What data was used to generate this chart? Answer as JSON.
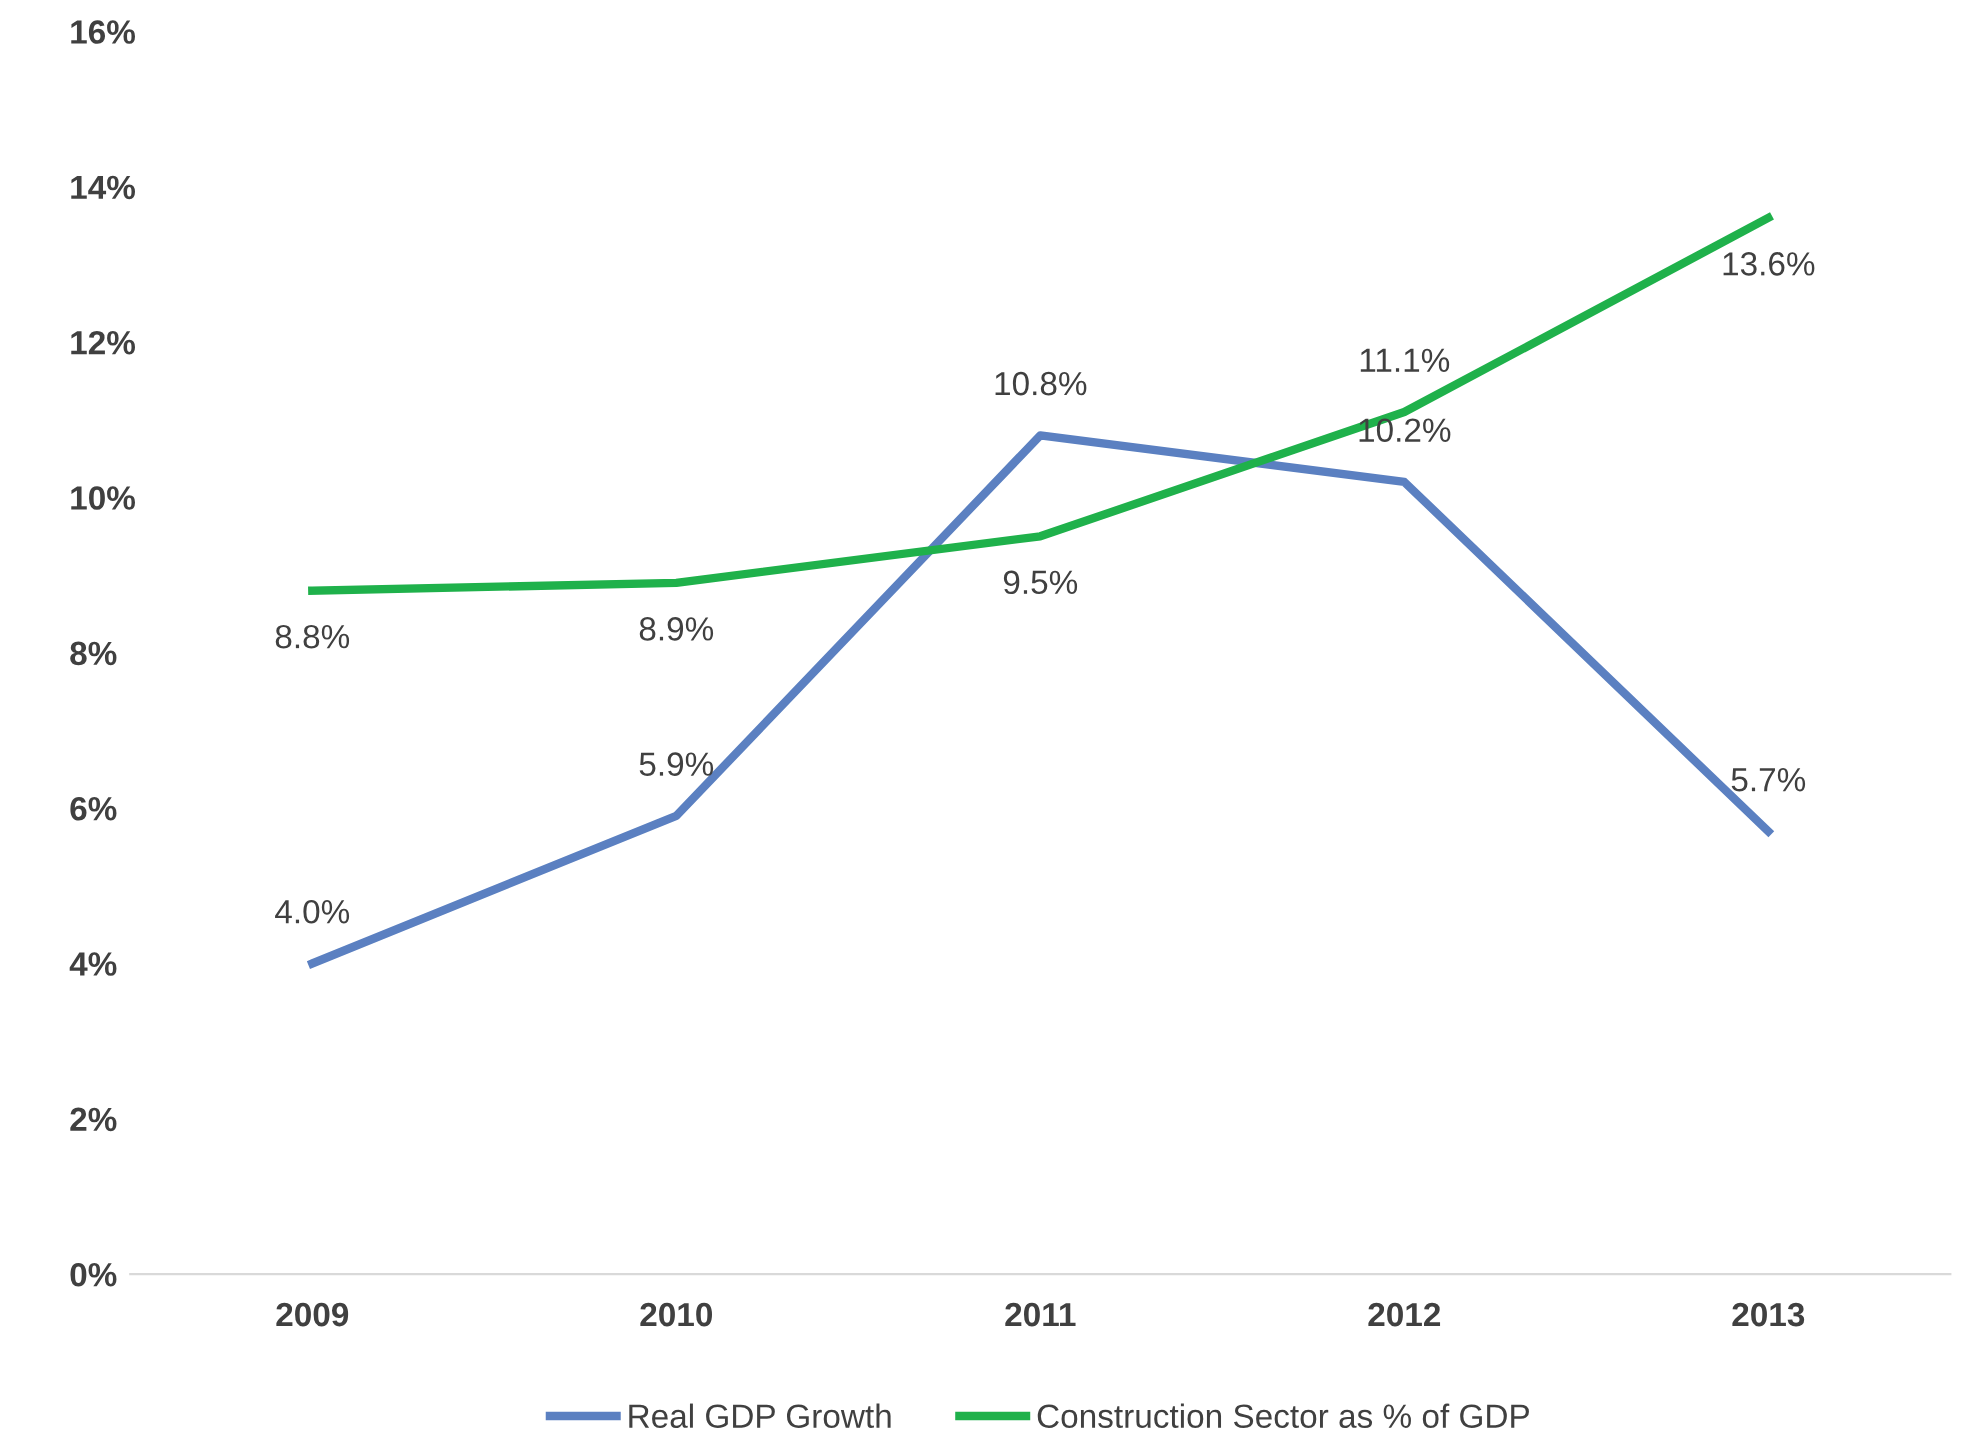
{
  "chart_data": {
    "type": "line",
    "categories": [
      "2009",
      "2010",
      "2011",
      "2012",
      "2013"
    ],
    "series": [
      {
        "name": "Real GDP Growth",
        "color": "#5b80c1",
        "values": [
          4.0,
          5.9,
          10.8,
          10.2,
          5.7
        ],
        "value_labels": [
          "4.0%",
          "5.9%",
          "10.8%",
          "10.2%",
          "5.7%"
        ]
      },
      {
        "name": "Construction Sector as % of GDP",
        "color": "#1fb14b",
        "values": [
          8.8,
          8.9,
          9.5,
          11.1,
          13.6
        ],
        "value_labels": [
          "8.8%",
          "8.9%",
          "9.5%",
          "11.1%",
          "13.6%"
        ]
      }
    ],
    "ylim": [
      0,
      16
    ],
    "yticks": [
      {
        "value": 0,
        "label": "0%"
      },
      {
        "value": 2,
        "label": "2%"
      },
      {
        "value": 4,
        "label": "4%"
      },
      {
        "value": 6,
        "label": "6%"
      },
      {
        "value": 8,
        "label": "8%"
      },
      {
        "value": 10,
        "label": "10%"
      },
      {
        "value": 12,
        "label": "12%"
      },
      {
        "value": 14,
        "label": "14%"
      },
      {
        "value": 16,
        "label": "16%"
      }
    ],
    "grid": false,
    "legend": "bottom",
    "marker": "none",
    "line_style": "solid"
  }
}
